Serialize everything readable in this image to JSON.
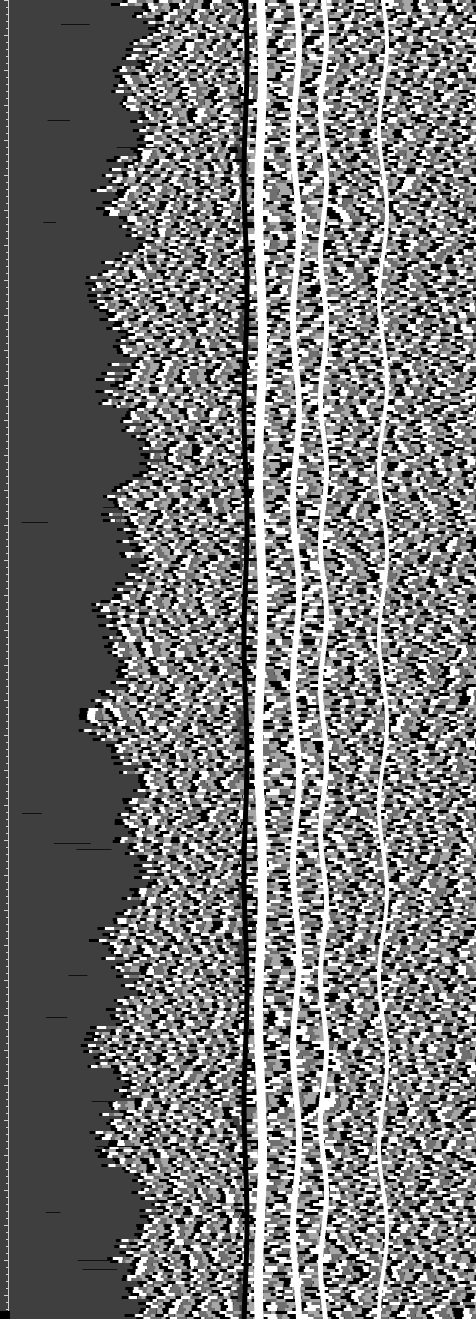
{
  "image": {
    "kind": "grayscale-radargram",
    "background_color": "#3f3f3f",
    "band_colors": [
      "#000000",
      "#ffffff",
      "#6f6f6f",
      "#a7a7a7"
    ],
    "left_rule_color": "#d0d0d0"
  }
}
